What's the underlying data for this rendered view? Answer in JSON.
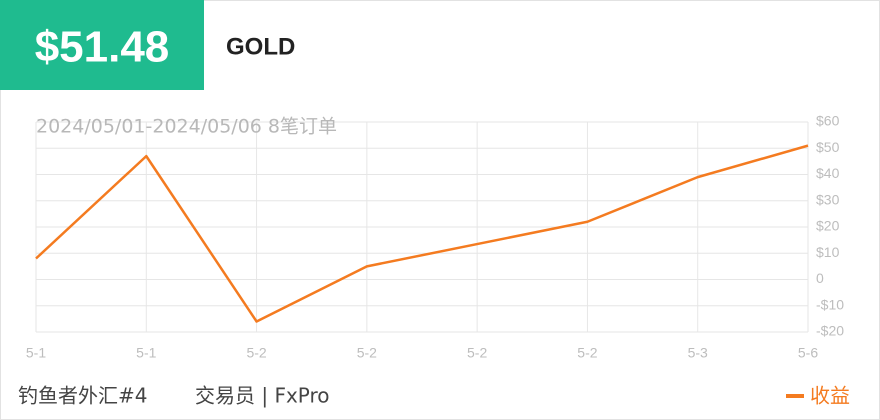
{
  "header": {
    "amount": "$51.48",
    "symbol": "GOLD"
  },
  "chart_data": {
    "type": "line",
    "subtitle": "2024/05/01-2024/05/06 8笔订单",
    "categories": [
      "5-1",
      "5-1",
      "5-2",
      "5-2",
      "5-2",
      "5-2",
      "5-3",
      "5-6"
    ],
    "series": [
      {
        "name": "收益",
        "color": "#f47b20",
        "values": [
          8,
          47,
          -16,
          5,
          13.5,
          22,
          39,
          51
        ]
      }
    ],
    "ylim": [
      -20,
      60
    ],
    "yticks": [
      {
        "value": -20,
        "label": "-$20"
      },
      {
        "value": -10,
        "label": "-$10"
      },
      {
        "value": 0,
        "label": "0"
      },
      {
        "value": 10,
        "label": "$10"
      },
      {
        "value": 20,
        "label": "$20"
      },
      {
        "value": 30,
        "label": "$30"
      },
      {
        "value": 40,
        "label": "$40"
      },
      {
        "value": 50,
        "label": "$50"
      },
      {
        "value": 60,
        "label": "$60"
      }
    ],
    "grid": true
  },
  "footer": {
    "trader": "钓鱼者外汇#4",
    "role": "交易员 | FxPro"
  }
}
